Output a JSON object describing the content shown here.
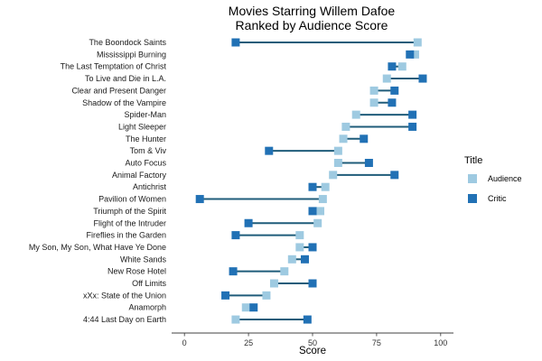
{
  "chart_data": {
    "type": "dumbbell",
    "title_lines": [
      "Movies Starring Willem Dafoe",
      "Ranked by Audience Score"
    ],
    "xlabel": "Score",
    "ylabel": "",
    "xlim": [
      -5,
      105
    ],
    "xticks": [
      0,
      25,
      50,
      75,
      100
    ],
    "grid": false,
    "legend": {
      "title": "Title",
      "position": "right",
      "entries": [
        {
          "name": "Audience",
          "color": "#9ecae1"
        },
        {
          "name": "Critic",
          "color": "#2171b5"
        }
      ]
    },
    "segment_color": "#1f5c7a",
    "categories": [
      "The Boondock Saints",
      "Mississippi Burning",
      "The Last Temptation of Christ",
      "To Live and Die in L.A.",
      "Clear and Present Danger",
      "Shadow of the Vampire",
      "Spider-Man",
      "Light Sleeper",
      "The Hunter",
      "Tom & Viv",
      "Auto Focus",
      "Animal Factory",
      "Antichrist",
      "Pavilion of Women",
      "Triumph of the Spirit",
      "Flight of the Intruder",
      "Fireflies in the Garden",
      "My Son, My Son, What Have Ye Done",
      "White Sands",
      "New Rose Hotel",
      "Off Limits",
      "xXx: State of the Union",
      "Anamorph",
      "4:44 Last Day on Earth"
    ],
    "series": [
      {
        "name": "Audience",
        "values": [
          91,
          90,
          85,
          79,
          74,
          74,
          67,
          63,
          62,
          60,
          60,
          58,
          55,
          54,
          53,
          52,
          45,
          45,
          42,
          39,
          35,
          32,
          24,
          20
        ]
      },
      {
        "name": "Critic",
        "values": [
          20,
          88,
          81,
          93,
          82,
          81,
          89,
          89,
          70,
          33,
          72,
          82,
          50,
          6,
          50,
          25,
          20,
          50,
          47,
          19,
          50,
          16,
          27,
          48
        ]
      }
    ]
  }
}
